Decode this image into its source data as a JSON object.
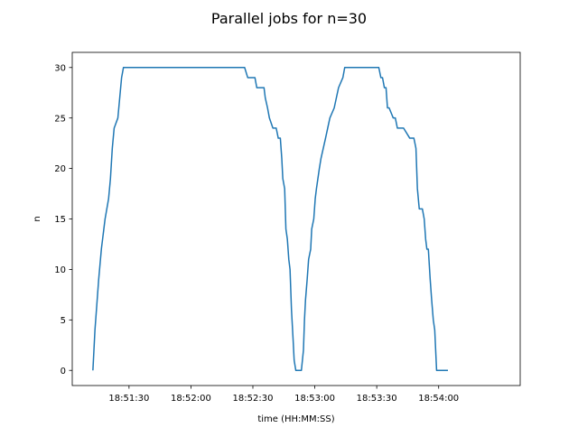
{
  "chart_data": {
    "type": "line",
    "title": "Parallel jobs for n=30",
    "xlabel": "time (HH:MM:SS)",
    "ylabel": "n",
    "xlim": [
      -7.5,
      209.5
    ],
    "ylim": [
      -1.5,
      31.5
    ],
    "x_tick_values": [
      20,
      50,
      80,
      110,
      140,
      170
    ],
    "x_tick_labels": [
      "18:51:30",
      "18:52:00",
      "18:52:30",
      "18:53:00",
      "18:53:30",
      "18:54:00"
    ],
    "y_tick_values": [
      0,
      5,
      10,
      15,
      20,
      25,
      30
    ],
    "y_tick_labels": [
      "0",
      "5",
      "10",
      "15",
      "20",
      "25",
      "30"
    ],
    "x_units": "seconds after 18:51:10",
    "grid": false,
    "series": [
      {
        "name": "n",
        "color": "#1f77b4",
        "x": [
          2.5,
          3.5,
          5.3,
          6.6,
          8.4,
          10.1,
          11.0,
          11.9,
          12.8,
          14.6,
          15.5,
          16.4,
          17.3,
          18.2,
          19.1,
          20.0,
          48.0,
          76.0,
          77.5,
          81.0,
          81.9,
          82.0,
          85.4,
          86.0,
          87.1,
          88.0,
          89.7,
          90.5,
          91.3,
          92.3,
          93.3,
          94.0,
          94.5,
          95.4,
          96.0,
          96.7,
          97.4,
          98.0,
          98.7,
          99.5,
          100.0,
          100.8,
          101.4,
          102.0,
          103.5,
          104.5,
          105.0,
          105.5,
          106.3,
          107.0,
          108.0,
          108.5,
          109.5,
          110.2,
          110.8,
          111.5,
          112.2,
          113.0,
          115.2,
          117.3,
          119.4,
          121.5,
          123.6,
          124.5,
          125.5,
          126.0,
          126.3,
          128.0,
          135.0,
          141.0,
          142.0,
          142.8,
          143.7,
          144.5,
          145.2,
          146.0,
          148.0,
          149.0,
          150.0,
          151.0,
          153.0,
          156.0,
          157.0,
          158.0,
          159.0,
          159.7,
          160.6,
          161.5,
          162.1,
          163.0,
          163.7,
          164.3,
          165.0,
          165.9,
          166.6,
          167.4,
          168.1,
          169.0,
          170.1,
          171.4,
          174.5
        ],
        "y": [
          0,
          4,
          9,
          12,
          15,
          17,
          19,
          22,
          24,
          25,
          27,
          29,
          30,
          30,
          30,
          30,
          30,
          30,
          29,
          29,
          28,
          28,
          28,
          27,
          26,
          25,
          24,
          24,
          24,
          23,
          23,
          21,
          19,
          18,
          14,
          13,
          11,
          10,
          6,
          3,
          1,
          0,
          0,
          0,
          0,
          2,
          5,
          7,
          9,
          11,
          12,
          14,
          15,
          17,
          18,
          19,
          20,
          21,
          23,
          25,
          26,
          28,
          29,
          30,
          30,
          30,
          30,
          30,
          30,
          30,
          29,
          29,
          28,
          28,
          26,
          26,
          25,
          25,
          24,
          24,
          24,
          23,
          23,
          23,
          22,
          18,
          16,
          16,
          16,
          15,
          13,
          12,
          12,
          9,
          7,
          5,
          4,
          0,
          0,
          0,
          0
        ]
      }
    ]
  }
}
